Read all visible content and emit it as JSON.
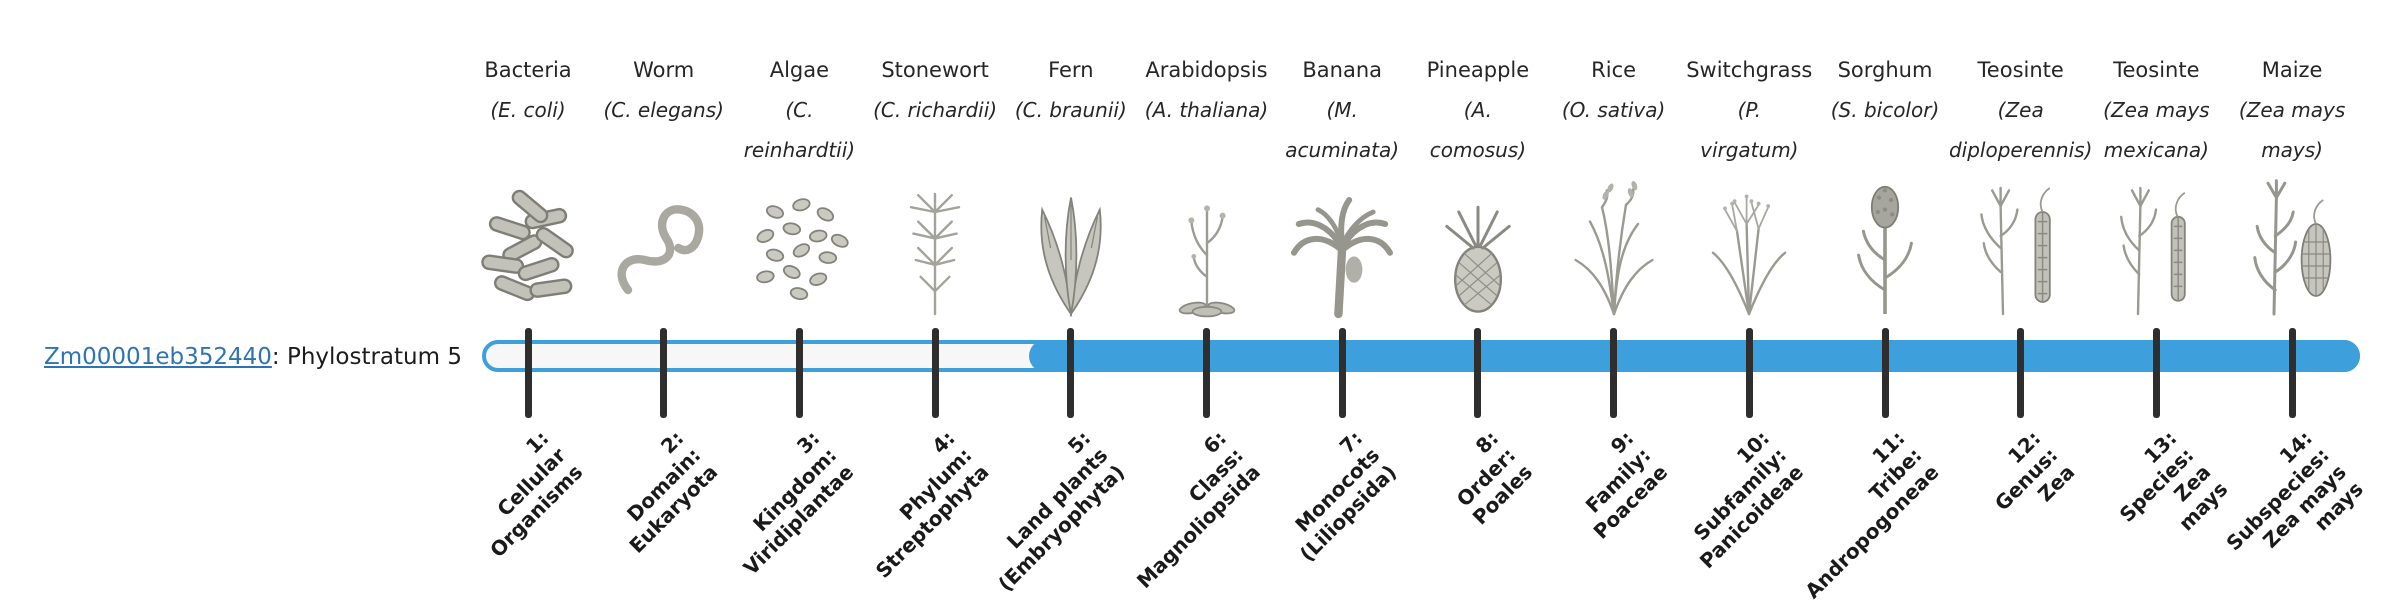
{
  "page": {
    "background": "#ffffff"
  },
  "gene": {
    "id": "Zm00001eb352440",
    "label_suffix": ": Phylostratum 5",
    "phylostratum": 5
  },
  "track": {
    "fill_color": "#3da0dc",
    "empty_color": "#f7f7f7",
    "tick_color": "#2e2e2e",
    "filled_from_stratum": 5,
    "total_strata": 14
  },
  "colors": {
    "link": "#2e74b5",
    "text": "#262626",
    "label_text": "#1a1a1a"
  },
  "species": [
    {
      "common": "Bacteria",
      "sci_lines": [
        "(E. coli)"
      ],
      "icon": "bacteria-icon"
    },
    {
      "common": "Worm",
      "sci_lines": [
        "(C. elegans)"
      ],
      "icon": "worm-icon"
    },
    {
      "common": "Algae",
      "sci_lines": [
        "(C.",
        "reinhardtii)"
      ],
      "icon": "algae-icon"
    },
    {
      "common": "Stonewort",
      "sci_lines": [
        "(C. richardii)"
      ],
      "icon": "stonewort-icon"
    },
    {
      "common": "Fern",
      "sci_lines": [
        "(C. braunii)"
      ],
      "icon": "fern-icon"
    },
    {
      "common": "Arabidopsis",
      "sci_lines": [
        "(A. thaliana)"
      ],
      "icon": "arabidopsis-icon"
    },
    {
      "common": "Banana",
      "sci_lines": [
        "(M.",
        "acuminata)"
      ],
      "icon": "banana-icon"
    },
    {
      "common": "Pineapple",
      "sci_lines": [
        "(A.",
        "comosus)"
      ],
      "icon": "pineapple-icon"
    },
    {
      "common": "Rice",
      "sci_lines": [
        "(O. sativa)"
      ],
      "icon": "rice-icon"
    },
    {
      "common": "Switchgrass",
      "sci_lines": [
        "(P.",
        "virgatum)"
      ],
      "icon": "switchgrass-icon"
    },
    {
      "common": "Sorghum",
      "sci_lines": [
        "(S. bicolor)"
      ],
      "icon": "sorghum-icon"
    },
    {
      "common": "Teosinte",
      "sci_lines": [
        "(Zea",
        "diploperennis)"
      ],
      "icon": "teosinte-diploperennis-icon"
    },
    {
      "common": "Teosinte",
      "sci_lines": [
        "(Zea mays",
        "mexicana)"
      ],
      "icon": "teosinte-mexicana-icon"
    },
    {
      "common": "Maize",
      "sci_lines": [
        "(Zea mays",
        "mays)"
      ],
      "icon": "maize-icon"
    }
  ],
  "phylostrata": [
    {
      "lines": [
        "1:",
        "Cellular",
        "Organisms"
      ]
    },
    {
      "lines": [
        "2:",
        "Domain:",
        "Eukaryota"
      ]
    },
    {
      "lines": [
        "3:",
        "Kingdom:",
        "Viridiplantae"
      ]
    },
    {
      "lines": [
        "4:",
        "Phylum:",
        "Streptophyta"
      ]
    },
    {
      "lines": [
        "5:",
        "Land plants",
        "(Embryophyta)"
      ]
    },
    {
      "lines": [
        "6:",
        "Class:",
        "Magnoliopsida"
      ]
    },
    {
      "lines": [
        "7:",
        "Monocots",
        "(Liliopsida)"
      ]
    },
    {
      "lines": [
        "8:",
        "Order:",
        "Poales"
      ]
    },
    {
      "lines": [
        "9:",
        "Family:",
        "Poaceae"
      ]
    },
    {
      "lines": [
        "10:",
        "Subfamily:",
        "Panicoideae"
      ]
    },
    {
      "lines": [
        "11:",
        "Tribe:",
        "Andropogoneae"
      ]
    },
    {
      "lines": [
        "12:",
        "Genus:",
        "Zea"
      ]
    },
    {
      "lines": [
        "13:",
        "Species:",
        "Zea",
        "mays"
      ]
    },
    {
      "lines": [
        "14:",
        "Subspecies:",
        "Zea mays",
        "mays"
      ]
    }
  ]
}
